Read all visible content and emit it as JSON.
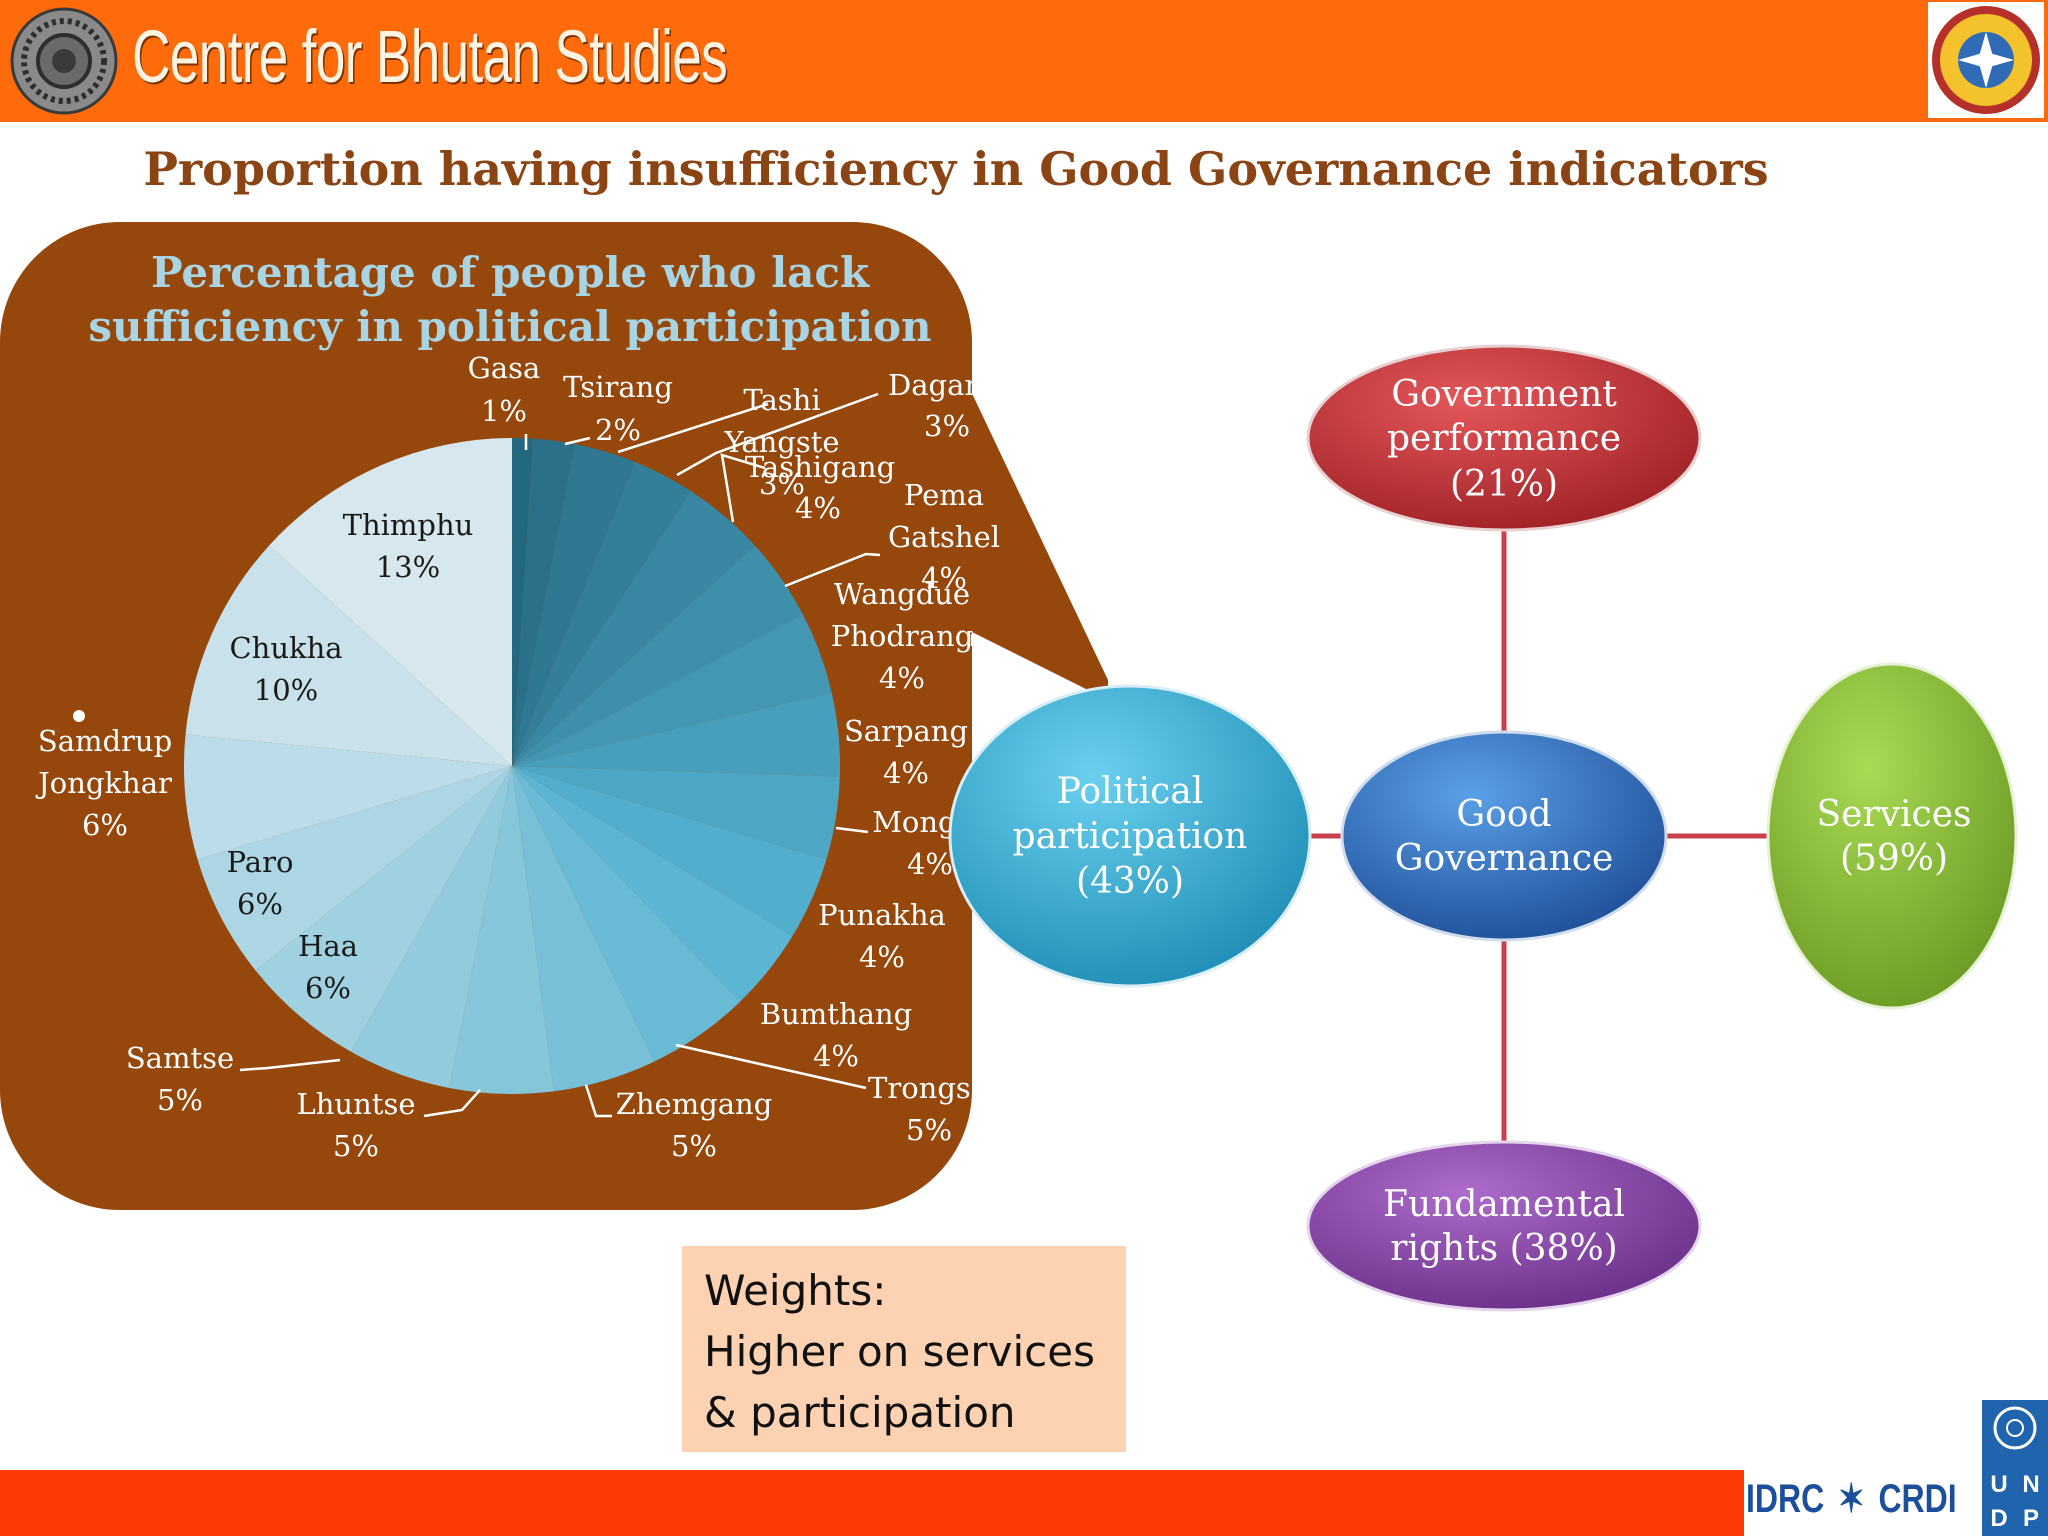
{
  "header": {
    "brand": "Centre for Bhutan Studies"
  },
  "slide_title": "Proportion having insufficiency in Good Governance indicators",
  "chart_data": {
    "type": "pie",
    "title": "Percentage of people who lack sufficiency in political participation",
    "slices": [
      {
        "name": "Gasa",
        "label": "1%",
        "value": 1
      },
      {
        "name": "Tsirang",
        "label": "2%",
        "value": 2
      },
      {
        "name": "Tashi Yangste",
        "label": "3%",
        "value": 3
      },
      {
        "name": "Dagana",
        "label": "3%",
        "value": 3
      },
      {
        "name": "Tashigang",
        "label": "4%",
        "value": 4
      },
      {
        "name": "Pema Gatshel",
        "label": "4%",
        "value": 4
      },
      {
        "name": "Wangdue Phodrang",
        "label": "4%",
        "value": 4
      },
      {
        "name": "Sarpang",
        "label": "4%",
        "value": 4
      },
      {
        "name": "Mongar",
        "label": "4%",
        "value": 4
      },
      {
        "name": "Punakha",
        "label": "4%",
        "value": 4
      },
      {
        "name": "Bumthang",
        "label": "4%",
        "value": 4
      },
      {
        "name": "Trongsa",
        "label": "5%",
        "value": 5
      },
      {
        "name": "Zhemgang",
        "label": "5%",
        "value": 5
      },
      {
        "name": "Lhuntse",
        "label": "5%",
        "value": 5
      },
      {
        "name": "Samtse",
        "label": "5%",
        "value": 5
      },
      {
        "name": "Haa",
        "label": "6%",
        "value": 6
      },
      {
        "name": "Paro",
        "label": "6%",
        "value": 6
      },
      {
        "name": "Samdrup Jongkhar",
        "label": "6%",
        "value": 6
      },
      {
        "name": "Chukha",
        "label": "10%",
        "value": 10
      },
      {
        "name": "Thimphu",
        "label": "13%",
        "value": 13
      }
    ]
  },
  "labels": {
    "gasa": [
      "Gasa",
      "1%"
    ],
    "tsirang": [
      "Tsirang",
      "2%"
    ],
    "tashi_yangste": [
      "Tashi",
      "Yangste",
      "3%"
    ],
    "dagana": [
      "Dagan",
      "3%"
    ],
    "tashigang": [
      "Tashigang",
      "4%"
    ],
    "pema_gatshel": [
      "Pema",
      "Gatshel",
      "4%"
    ],
    "wangdue": [
      "Wangdue",
      "Phodrang",
      "4%"
    ],
    "sarpang": [
      "Sarpang",
      "4%"
    ],
    "mongar": [
      "Mongar",
      "4%"
    ],
    "punakha": [
      "Punakha",
      "4%"
    ],
    "bumthang": [
      "Bumthang",
      "4%"
    ],
    "trongsa": [
      "Trongs",
      "5%"
    ],
    "zhemgang": [
      "Zhemgang",
      "5%"
    ],
    "lhuntse": [
      "Lhuntse",
      "5%"
    ],
    "samtse": [
      "Samtse",
      "5%"
    ],
    "haa": [
      "Haa",
      "6%"
    ],
    "paro": [
      "Paro",
      "6%"
    ],
    "samdrup": [
      "Samdrup",
      "Jongkhar",
      "6%"
    ],
    "chukha": [
      "Chukha",
      "10%"
    ],
    "thimphu": [
      "Thimphu",
      "13%"
    ]
  },
  "governance": {
    "center": [
      "Good",
      "Governance"
    ],
    "political": [
      "Political",
      "participation",
      "(43%)"
    ],
    "government": [
      "Government",
      "performance",
      "(21%)"
    ],
    "services": [
      "Services",
      "(59%)"
    ],
    "rights": [
      "Fundamental",
      "rights (38%)"
    ]
  },
  "weights": [
    "Weights:",
    "Higher on  services",
    "& participation"
  ],
  "footer": {
    "partner_left": "IDRC",
    "partner_right": "CRDI",
    "undp": [
      "U",
      "N",
      "D",
      "P"
    ]
  },
  "colors": {
    "header": "#ff6a0a",
    "title": "#8b4413",
    "panel": "#95470c",
    "center_node": "#2f6fba",
    "political_node": "#39acd2",
    "government_node": "#c4363a",
    "services_node": "#8fbf3a",
    "rights_node": "#8a4aa6",
    "connector": "#c8414a"
  }
}
